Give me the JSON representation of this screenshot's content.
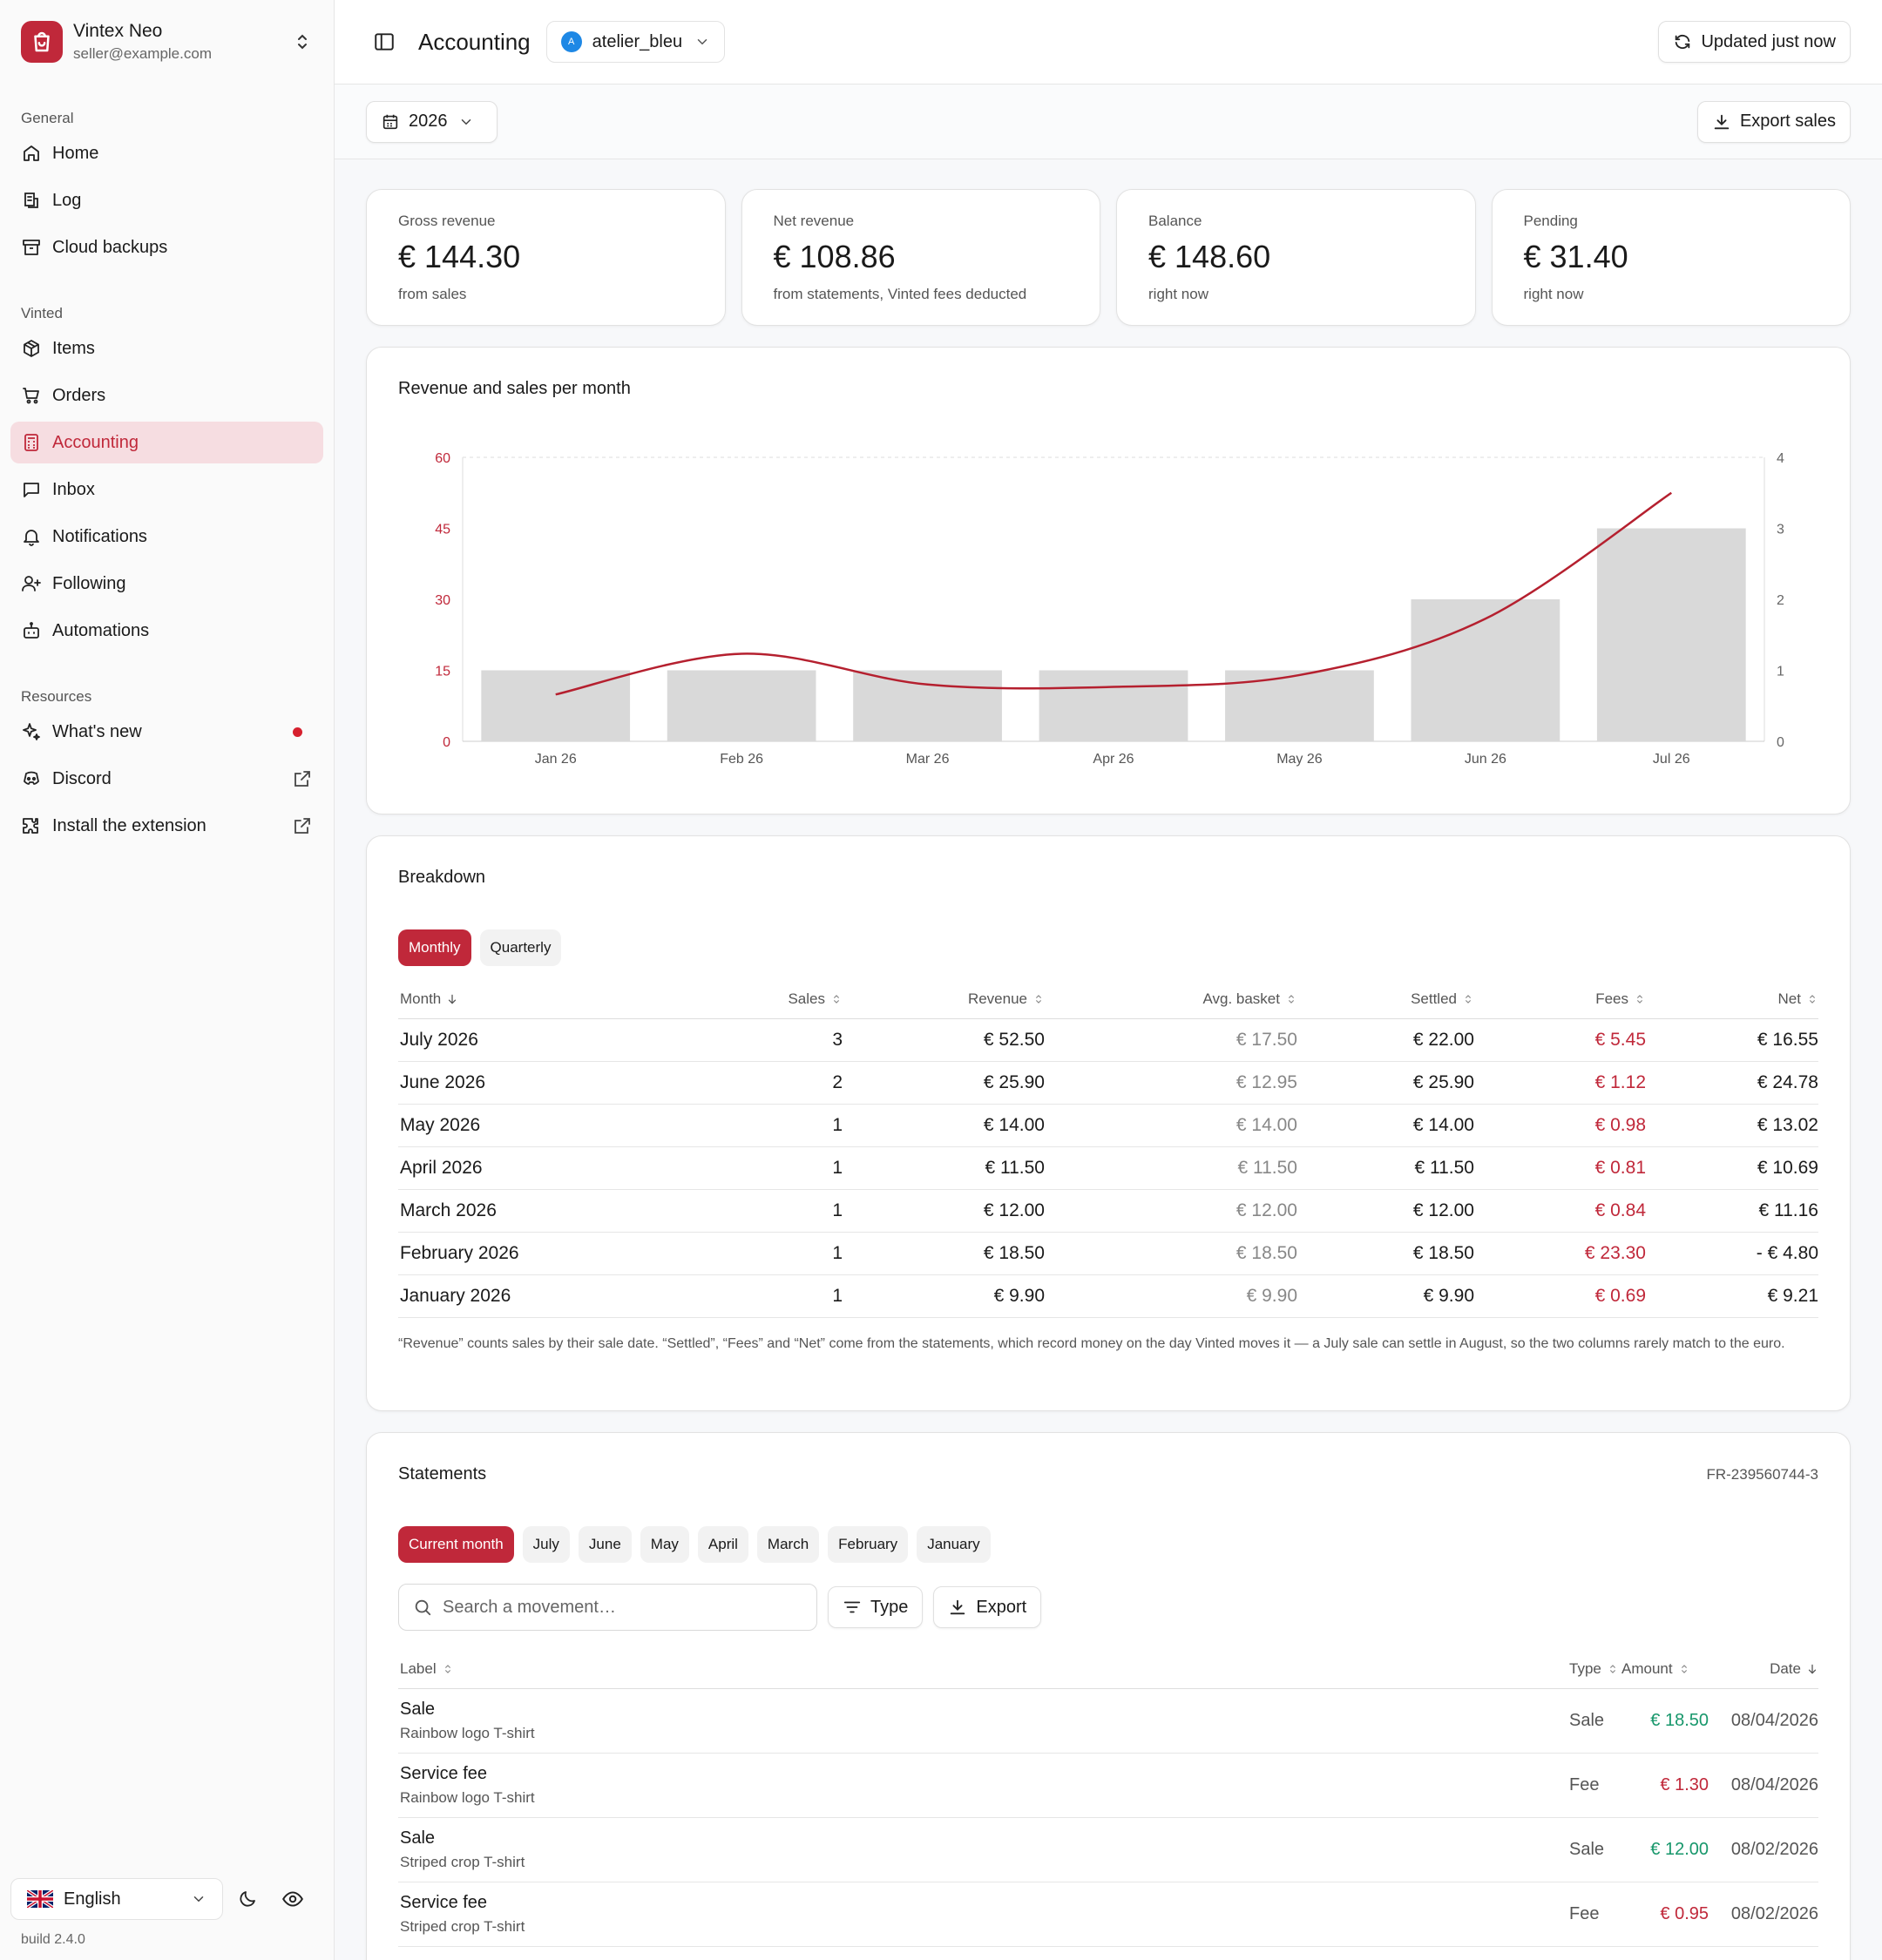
{
  "account": {
    "name": "Vintex Neo",
    "email": "seller@example.com"
  },
  "sidebar": {
    "general_label": "General",
    "general": [
      {
        "label": "Home",
        "icon": "home-icon"
      },
      {
        "label": "Log",
        "icon": "log-icon"
      },
      {
        "label": "Cloud backups",
        "icon": "archive-icon"
      }
    ],
    "vinted_label": "Vinted",
    "vinted": [
      {
        "label": "Items",
        "icon": "package-icon"
      },
      {
        "label": "Orders",
        "icon": "cart-icon"
      },
      {
        "label": "Accounting",
        "icon": "calculator-icon",
        "active": true
      },
      {
        "label": "Inbox",
        "icon": "message-icon"
      },
      {
        "label": "Notifications",
        "icon": "bell-icon"
      },
      {
        "label": "Following",
        "icon": "user-plus-icon"
      },
      {
        "label": "Automations",
        "icon": "bot-icon"
      }
    ],
    "resources_label": "Resources",
    "resources": [
      {
        "label": "What's new",
        "icon": "sparkle-icon"
      },
      {
        "label": "Discord",
        "icon": "discord-icon"
      },
      {
        "label": "Install the extension",
        "icon": "puzzle-icon"
      }
    ],
    "language": "English",
    "build": "build 2.4.0"
  },
  "topbar": {
    "title": "Accounting",
    "store_initial": "A",
    "store": "atelier_bleu",
    "updated": "Updated just now"
  },
  "subbar": {
    "year": "2026",
    "export": "Export sales"
  },
  "cards": [
    {
      "label": "Gross revenue",
      "value": "€ 144.30",
      "sub": "from sales"
    },
    {
      "label": "Net revenue",
      "value": "€ 108.86",
      "sub": "from statements, Vinted fees deducted"
    },
    {
      "label": "Balance",
      "value": "€ 148.60",
      "sub": "right now"
    },
    {
      "label": "Pending",
      "value": "€ 31.40",
      "sub": "right now"
    }
  ],
  "chart_title": "Revenue and sales per month",
  "chart_data": {
    "type": "bar",
    "categories": [
      "Jan 26",
      "Feb 26",
      "Mar 26",
      "Apr 26",
      "May 26",
      "Jun 26",
      "Jul 26"
    ],
    "series": [
      {
        "type": "bar",
        "axis": "right",
        "values": [
          1,
          1,
          1,
          1,
          1,
          2,
          3
        ]
      },
      {
        "type": "line",
        "axis": "left",
        "values": [
          9.9,
          18.5,
          12,
          11.5,
          14,
          25.9,
          52.5
        ]
      }
    ],
    "ylim_left": [
      0,
      60
    ],
    "yticks_left": [
      0,
      15,
      30,
      45,
      60
    ],
    "ylim_right": [
      0,
      4
    ],
    "yticks_right": [
      0,
      1,
      2,
      3,
      4
    ],
    "colors": {
      "bar": "#d9d9d9",
      "line": "#b5202f",
      "left_ticks": "#c0283a"
    }
  },
  "breakdown": {
    "title": "Breakdown",
    "tabs": [
      "Monthly",
      "Quarterly"
    ],
    "columns": [
      "Month",
      "Sales",
      "Revenue",
      "Avg. basket",
      "Settled",
      "Fees",
      "Net"
    ],
    "rows": [
      [
        "July 2026",
        "3",
        "€ 52.50",
        "€ 17.50",
        "€ 22.00",
        "€ 5.45",
        "€ 16.55"
      ],
      [
        "June 2026",
        "2",
        "€ 25.90",
        "€ 12.95",
        "€ 25.90",
        "€ 1.12",
        "€ 24.78"
      ],
      [
        "May 2026",
        "1",
        "€ 14.00",
        "€ 14.00",
        "€ 14.00",
        "€ 0.98",
        "€ 13.02"
      ],
      [
        "April 2026",
        "1",
        "€ 11.50",
        "€ 11.50",
        "€ 11.50",
        "€ 0.81",
        "€ 10.69"
      ],
      [
        "March 2026",
        "1",
        "€ 12.00",
        "€ 12.00",
        "€ 12.00",
        "€ 0.84",
        "€ 11.16"
      ],
      [
        "February 2026",
        "1",
        "€ 18.50",
        "€ 18.50",
        "€ 18.50",
        "€ 23.30",
        "- € 4.80"
      ],
      [
        "January 2026",
        "1",
        "€ 9.90",
        "€ 9.90",
        "€ 9.90",
        "€ 0.69",
        "€ 9.21"
      ]
    ],
    "note": "“Revenue” counts sales by their sale date. “Settled”, “Fees” and “Net” come from the statements, which record money on the day Vinted moves it — a July sale can settle in August, so the two columns rarely match to the euro."
  },
  "statements": {
    "title": "Statements",
    "ref": "FR-239560744-3",
    "tabs": [
      "Current month",
      "July",
      "June",
      "May",
      "April",
      "March",
      "February",
      "January"
    ],
    "search_placeholder": "Search a movement…",
    "type_btn": "Type",
    "export_btn": "Export",
    "columns": [
      "Label",
      "Type",
      "Amount",
      "Date"
    ],
    "rows": [
      {
        "label": "Sale",
        "sub": "Rainbow logo T-shirt",
        "type": "Sale",
        "amount": "€ 18.50",
        "date": "08/04/2026",
        "kind": "in"
      },
      {
        "label": "Service fee",
        "sub": "Rainbow logo T-shirt",
        "type": "Fee",
        "amount": "€ 1.30",
        "date": "08/04/2026",
        "kind": "out"
      },
      {
        "label": "Sale",
        "sub": "Striped crop T-shirt",
        "type": "Sale",
        "amount": "€ 12.00",
        "date": "08/02/2026",
        "kind": "in"
      },
      {
        "label": "Service fee",
        "sub": "Striped crop T-shirt",
        "type": "Fee",
        "amount": "€ 0.95",
        "date": "08/02/2026",
        "kind": "out"
      }
    ]
  }
}
